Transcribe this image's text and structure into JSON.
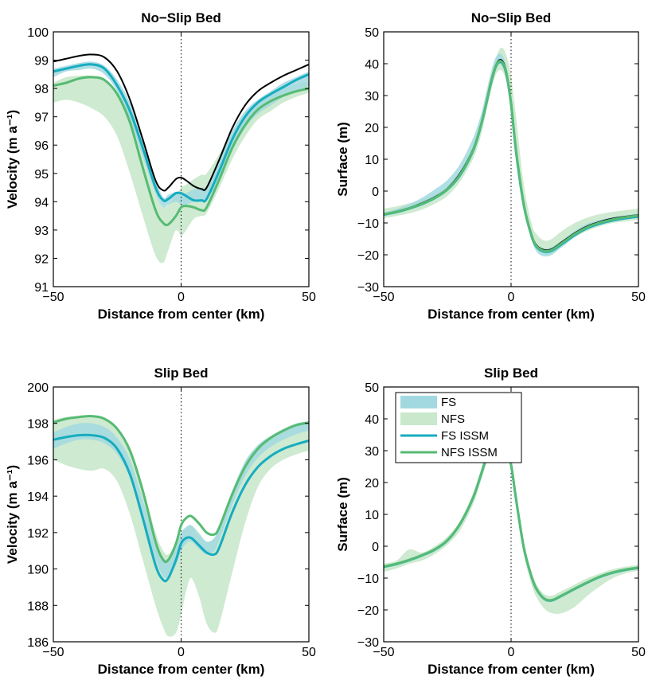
{
  "colors": {
    "fs_band": "#a2d9e0",
    "nfs_band": "#c9e8cc",
    "fs_issm": "#16acbf",
    "nfs_issm": "#56bb73",
    "reference": "#000000"
  },
  "legend": {
    "items": [
      {
        "label": "FS",
        "kind": "band",
        "color": "#a2d9e0"
      },
      {
        "label": "NFS",
        "kind": "band",
        "color": "#c9e8cc"
      },
      {
        "label": "FS ISSM",
        "kind": "line",
        "color": "#16acbf"
      },
      {
        "label": "NFS ISSM",
        "kind": "line",
        "color": "#56bb73"
      }
    ]
  },
  "chart_data": [
    {
      "type": "line",
      "title": "No−Slip Bed",
      "xlabel": "Distance from center (km)",
      "ylabel": "Velocity (m a⁻¹)",
      "xlim": [
        -50,
        50
      ],
      "ylim": [
        91,
        100
      ],
      "xticks": [
        "−50",
        "0",
        "50"
      ],
      "yticks": [
        "91",
        "92",
        "93",
        "94",
        "95",
        "96",
        "97",
        "98",
        "99",
        "100"
      ],
      "grid": "dotted at x=0",
      "x": [
        -50,
        -45,
        -40,
        -35,
        -30,
        -25,
        -20,
        -15,
        -10,
        -7,
        -5,
        -2,
        0,
        2,
        5,
        8,
        10,
        15,
        20,
        25,
        30,
        35,
        40,
        45,
        50
      ],
      "series": [
        {
          "name": "FS",
          "kind": "band",
          "lower": [
            98.4,
            98.6,
            98.65,
            98.7,
            98.5,
            97.9,
            96.9,
            95.6,
            94.3,
            93.8,
            93.9,
            94.0,
            93.9,
            93.9,
            94.0,
            94.0,
            94.05,
            94.8,
            95.8,
            96.6,
            97.1,
            97.4,
            97.7,
            97.9,
            98.1
          ],
          "upper": [
            98.7,
            98.8,
            98.9,
            98.95,
            98.8,
            98.3,
            97.5,
            96.3,
            94.8,
            94.15,
            94.25,
            94.35,
            94.3,
            94.3,
            94.45,
            94.5,
            94.55,
            95.5,
            96.5,
            97.2,
            97.6,
            97.9,
            98.2,
            98.4,
            98.6
          ]
        },
        {
          "name": "NFS",
          "kind": "band",
          "lower": [
            97.5,
            97.6,
            97.5,
            97.3,
            97.0,
            96.3,
            95.0,
            93.5,
            92.1,
            91.85,
            92.3,
            93.0,
            92.8,
            93.0,
            93.4,
            93.5,
            93.6,
            94.5,
            95.5,
            96.3,
            96.9,
            97.2,
            97.5,
            97.7,
            97.85
          ],
          "upper": [
            98.2,
            98.4,
            98.45,
            98.45,
            98.3,
            97.9,
            97.1,
            95.8,
            94.4,
            93.8,
            93.9,
            94.2,
            94.5,
            94.6,
            94.8,
            94.95,
            95.0,
            95.7,
            96.5,
            97.1,
            97.5,
            97.8,
            98.0,
            98.15,
            98.25
          ]
        }
      ],
      "lines": [
        {
          "kind": "reference",
          "values": [
            98.95,
            99.05,
            99.15,
            99.2,
            99.1,
            98.6,
            97.6,
            96.2,
            94.75,
            94.4,
            94.5,
            94.8,
            94.85,
            94.75,
            94.55,
            94.45,
            94.5,
            95.5,
            96.6,
            97.4,
            97.9,
            98.2,
            98.45,
            98.65,
            98.85
          ]
        },
        {
          "name": "FS ISSM",
          "values": [
            98.6,
            98.7,
            98.8,
            98.85,
            98.7,
            98.1,
            97.2,
            95.9,
            94.5,
            94.05,
            94.1,
            94.3,
            94.3,
            94.2,
            94.05,
            94.05,
            94.1,
            95.1,
            96.2,
            97.0,
            97.5,
            97.8,
            98.05,
            98.3,
            98.5
          ]
        },
        {
          "name": "NFS ISSM",
          "values": [
            98.1,
            98.2,
            98.35,
            98.4,
            98.3,
            97.8,
            96.8,
            95.2,
            93.7,
            93.25,
            93.2,
            93.5,
            93.8,
            93.85,
            93.8,
            93.7,
            93.8,
            94.8,
            95.9,
            96.7,
            97.25,
            97.55,
            97.75,
            97.9,
            98.0
          ]
        }
      ]
    },
    {
      "type": "line",
      "title": "No−Slip Bed",
      "xlabel": "Distance from center (km)",
      "ylabel": "Surface (m)",
      "xlim": [
        -50,
        50
      ],
      "ylim": [
        -30,
        50
      ],
      "xticks": [
        "−50",
        "0",
        "50"
      ],
      "yticks": [
        "−30",
        "−20",
        "−10",
        "0",
        "10",
        "20",
        "30",
        "40",
        "50"
      ],
      "grid": "dotted at x=0",
      "x": [
        -50,
        -45,
        -40,
        -35,
        -30,
        -25,
        -20,
        -15,
        -12,
        -10,
        -8,
        -6,
        -4,
        -2,
        0,
        2,
        5,
        8,
        10,
        13,
        16,
        20,
        25,
        30,
        35,
        40,
        45,
        50
      ],
      "series": [
        {
          "name": "FS",
          "kind": "band",
          "lower": [
            -7.8,
            -6.8,
            -5.7,
            -4.3,
            -2.5,
            0.0,
            4.5,
            12.0,
            20.0,
            27.0,
            34.0,
            39.0,
            39.8,
            36.0,
            25.0,
            11.0,
            -6.0,
            -15.0,
            -19.0,
            -20.5,
            -20.0,
            -17.5,
            -14.5,
            -12.0,
            -10.5,
            -9.5,
            -8.8,
            -8.3
          ],
          "upper": [
            -6.8,
            -5.6,
            -4.1,
            -2.1,
            0.5,
            3.5,
            8.5,
            16.5,
            23.5,
            30.0,
            37.0,
            42.0,
            43.0,
            39.5,
            28.0,
            14.0,
            -2.5,
            -12.5,
            -16.5,
            -18.0,
            -17.5,
            -15.5,
            -12.5,
            -10.2,
            -9.0,
            -8.2,
            -7.6,
            -7.0
          ]
        },
        {
          "name": "NFS",
          "kind": "band",
          "lower": [
            -8.5,
            -7.8,
            -7.0,
            -5.8,
            -4.0,
            -1.5,
            3.0,
            10.0,
            17.0,
            24.0,
            31.0,
            36.5,
            38.0,
            35.0,
            27.0,
            13.0,
            -5.0,
            -15.0,
            -18.0,
            -19.5,
            -19.5,
            -17.5,
            -14.5,
            -12.5,
            -11.0,
            -10.0,
            -9.5,
            -9.0
          ],
          "upper": [
            -5.5,
            -4.8,
            -3.8,
            -2.7,
            -1.0,
            1.5,
            6.0,
            14.0,
            21.0,
            28.0,
            35.0,
            41.5,
            45.0,
            43.0,
            36.0,
            23.0,
            2.0,
            -10.0,
            -13.5,
            -15.5,
            -15.0,
            -12.5,
            -10.0,
            -8.3,
            -7.2,
            -6.5,
            -6.0,
            -5.5
          ]
        }
      ],
      "lines": [
        {
          "kind": "reference",
          "values": [
            -7.2,
            -6.4,
            -5.3,
            -3.8,
            -1.9,
            0.8,
            5.6,
            13.0,
            20.5,
            27.0,
            34.2,
            39.5,
            41.2,
            38.0,
            28.0,
            13.0,
            -4.0,
            -13.5,
            -17.0,
            -18.5,
            -18.2,
            -16.0,
            -13.2,
            -11.0,
            -9.6,
            -8.6,
            -8.0,
            -7.5
          ]
        },
        {
          "name": "FS ISSM",
          "values": [
            -7.4,
            -6.6,
            -5.5,
            -4.1,
            -2.2,
            0.5,
            5.0,
            12.5,
            20.0,
            26.5,
            33.5,
            39.0,
            40.5,
            37.2,
            27.2,
            12.0,
            -4.5,
            -14.0,
            -17.5,
            -19.0,
            -18.7,
            -16.6,
            -13.8,
            -11.6,
            -10.2,
            -9.2,
            -8.5,
            -8.0
          ]
        },
        {
          "name": "NFS ISSM",
          "values": [
            -7.3,
            -6.5,
            -5.4,
            -4.0,
            -2.1,
            0.6,
            5.2,
            12.7,
            20.2,
            26.7,
            33.7,
            39.2,
            40.8,
            37.6,
            27.6,
            12.5,
            -4.2,
            -13.8,
            -17.3,
            -18.8,
            -18.5,
            -16.3,
            -13.5,
            -11.3,
            -9.9,
            -8.9,
            -8.2,
            -7.7
          ]
        }
      ]
    },
    {
      "type": "line",
      "title": "Slip Bed",
      "xlabel": "Distance from center (km)",
      "ylabel": "Velocity (m a⁻¹)",
      "xlim": [
        -50,
        50
      ],
      "ylim": [
        186,
        200
      ],
      "xticks": [
        "−50",
        "0",
        "50"
      ],
      "yticks": [
        "186",
        "188",
        "190",
        "192",
        "194",
        "196",
        "198",
        "200"
      ],
      "grid": "dotted at x=0",
      "x": [
        -50,
        -45,
        -40,
        -35,
        -30,
        -25,
        -20,
        -15,
        -10,
        -7,
        -5,
        -2,
        0,
        2,
        4,
        7,
        10,
        13,
        15,
        20,
        25,
        30,
        35,
        40,
        45,
        50
      ],
      "series": [
        {
          "name": "FS",
          "kind": "band",
          "lower": [
            196.6,
            196.9,
            197.1,
            197.1,
            196.9,
            196.3,
            195.0,
            192.8,
            190.5,
            189.6,
            189.6,
            190.2,
            191.0,
            191.4,
            191.5,
            191.1,
            190.8,
            191.0,
            191.6,
            193.5,
            195.1,
            196.1,
            196.7,
            197.1,
            197.4,
            197.6
          ],
          "upper": [
            197.5,
            197.8,
            198.0,
            198.0,
            197.8,
            197.2,
            196.0,
            193.8,
            191.5,
            190.6,
            190.6,
            191.2,
            192.0,
            192.3,
            192.4,
            191.9,
            191.5,
            191.7,
            192.4,
            194.3,
            195.9,
            196.8,
            197.3,
            197.7,
            198.0,
            198.1
          ]
        },
        {
          "name": "NFS",
          "kind": "band",
          "lower": [
            196.0,
            195.7,
            195.5,
            195.4,
            195.5,
            194.8,
            193.0,
            190.5,
            188.0,
            186.8,
            186.3,
            186.5,
            187.5,
            188.8,
            189.5,
            188.5,
            187.0,
            186.5,
            187.0,
            189.8,
            192.5,
            194.5,
            195.5,
            196.0,
            196.3,
            196.5
          ],
          "upper": [
            198.2,
            198.35,
            198.4,
            198.4,
            198.2,
            197.7,
            196.6,
            194.5,
            192.0,
            191.0,
            190.8,
            191.4,
            192.0,
            192.3,
            192.4,
            192.0,
            191.5,
            191.7,
            192.2,
            194.0,
            195.8,
            196.8,
            197.3,
            197.6,
            197.9,
            198.0
          ]
        }
      ],
      "lines": [
        {
          "name": "FS ISSM",
          "values": [
            197.1,
            197.25,
            197.35,
            197.35,
            197.2,
            196.6,
            195.2,
            192.8,
            190.2,
            189.4,
            189.5,
            190.5,
            191.4,
            191.7,
            191.7,
            191.3,
            190.9,
            190.8,
            191.2,
            193.1,
            194.6,
            195.6,
            196.2,
            196.6,
            196.85,
            197.05
          ]
        },
        {
          "name": "NFS ISSM",
          "values": [
            198.05,
            198.25,
            198.35,
            198.4,
            198.25,
            197.7,
            196.5,
            194.3,
            191.5,
            190.5,
            190.5,
            191.4,
            192.4,
            192.8,
            192.9,
            192.5,
            192.0,
            191.9,
            192.3,
            194.1,
            195.6,
            196.6,
            197.2,
            197.6,
            197.9,
            198.05
          ]
        }
      ]
    },
    {
      "type": "line",
      "title": "Slip Bed",
      "xlabel": "Distance from center (km)",
      "ylabel": "Surface (m)",
      "xlim": [
        -50,
        50
      ],
      "ylim": [
        -30,
        50
      ],
      "xticks": [
        "−50",
        "0",
        "50"
      ],
      "yticks": [
        "−30",
        "−20",
        "−10",
        "0",
        "10",
        "20",
        "30",
        "40",
        "50"
      ],
      "grid": "dotted at x=0",
      "x": [
        -50,
        -45,
        -40,
        -35,
        -30,
        -25,
        -20,
        -15,
        -12,
        -10,
        -8,
        -6,
        -4,
        -2,
        0,
        2,
        5,
        8,
        10,
        13,
        16,
        20,
        25,
        30,
        35,
        40,
        45,
        50
      ],
      "series": [
        {
          "name": "FS",
          "kind": "band",
          "lower": [
            -6.8,
            -5.9,
            -4.7,
            -3.2,
            -1.4,
            1.5,
            6.5,
            14.5,
            21.5,
            26.5,
            30.0,
            31.0,
            31.0,
            31.0,
            25.0,
            14.0,
            -1.0,
            -10.0,
            -14.0,
            -17.0,
            -17.5,
            -16.0,
            -13.8,
            -11.8,
            -10.0,
            -8.7,
            -7.8,
            -7.2
          ],
          "upper": [
            -6.0,
            -5.1,
            -3.9,
            -2.4,
            -0.6,
            2.3,
            7.5,
            15.5,
            22.5,
            27.5,
            31.0,
            31.0,
            31.0,
            31.0,
            26.0,
            15.0,
            0.0,
            -9.0,
            -13.0,
            -16.0,
            -16.5,
            -15.0,
            -13.0,
            -11.0,
            -9.2,
            -7.9,
            -7.0,
            -6.4
          ]
        },
        {
          "name": "NFS",
          "kind": "band",
          "lower": [
            -8.0,
            -7.0,
            -5.5,
            -4.5,
            -2.5,
            0.5,
            5.0,
            13.0,
            20.0,
            25.0,
            28.5,
            30.0,
            30.0,
            30.0,
            24.0,
            13.0,
            -2.5,
            -12.0,
            -16.0,
            -19.5,
            -21.0,
            -21.0,
            -19.0,
            -15.5,
            -12.5,
            -10.0,
            -8.5,
            -7.7
          ],
          "upper": [
            -5.5,
            -4.5,
            -1.0,
            -2.0,
            0.0,
            3.0,
            8.0,
            16.5,
            23.5,
            28.5,
            31.0,
            31.0,
            31.0,
            31.0,
            27.0,
            16.5,
            1.0,
            -8.0,
            -12.0,
            -15.0,
            -15.5,
            -14.0,
            -12.0,
            -10.0,
            -8.5,
            -7.2,
            -6.4,
            -5.8
          ]
        }
      ],
      "lines": [
        {
          "name": "FS ISSM",
          "values": [
            -6.5,
            -5.6,
            -4.4,
            -2.9,
            -1.1,
            1.8,
            7.0,
            15.0,
            22.0,
            27.0,
            30.5,
            31.0,
            31.0,
            31.0,
            25.5,
            14.5,
            -0.5,
            -9.5,
            -13.5,
            -16.5,
            -17.0,
            -15.5,
            -13.4,
            -11.4,
            -9.6,
            -8.3,
            -7.4,
            -6.8
          ]
        },
        {
          "name": "NFS ISSM",
          "values": [
            -6.4,
            -5.5,
            -4.3,
            -2.8,
            -1.0,
            1.9,
            7.1,
            15.1,
            22.1,
            27.1,
            30.6,
            31.0,
            31.0,
            31.0,
            25.6,
            14.6,
            -0.4,
            -9.4,
            -13.4,
            -16.4,
            -16.9,
            -15.4,
            -13.3,
            -11.3,
            -9.5,
            -8.2,
            -7.3,
            -6.7
          ]
        }
      ]
    }
  ]
}
